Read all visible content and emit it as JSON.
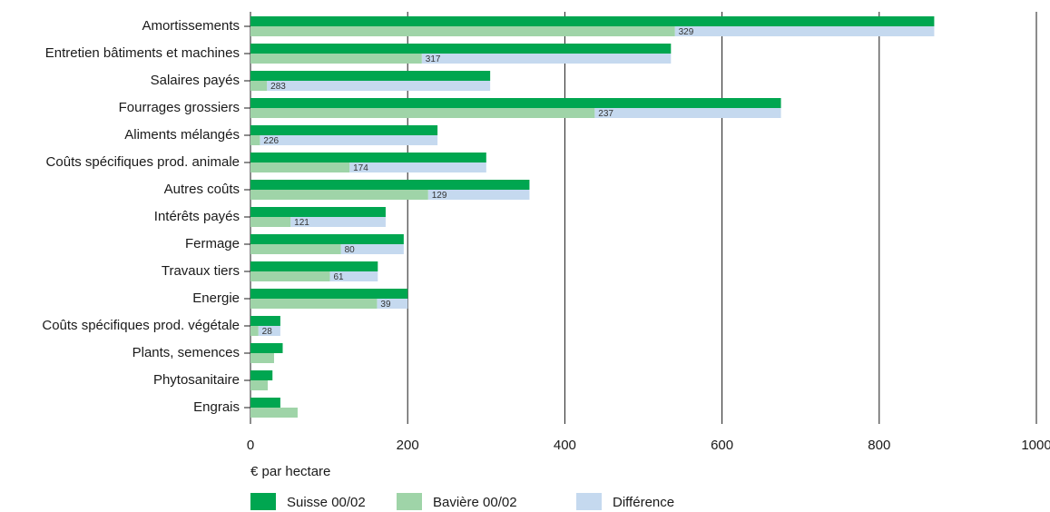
{
  "chart_data": {
    "type": "bar",
    "orientation": "horizontal",
    "categories": [
      "Amortissements",
      "Entretien bâtiments et machines",
      "Salaires payés",
      "Fourrages grossiers",
      "Aliments mélangés",
      "Coûts spécifiques prod. animale",
      "Autres coûts",
      "Intérêts payés",
      "Fermage",
      "Travaux tiers",
      "Energie",
      "Coûts spécifiques prod. végétale",
      "Plants, semences",
      "Phytosanitaire",
      "Engrais"
    ],
    "series": [
      {
        "name": "Suisse 00/02",
        "values": [
          870,
          535,
          305,
          675,
          238,
          300,
          355,
          172,
          195,
          162,
          200,
          38,
          41,
          28,
          38
        ]
      },
      {
        "name": "Bavière 00/02",
        "values": [
          540,
          218,
          21,
          438,
          12,
          126,
          226,
          51,
          115,
          101,
          161,
          10,
          30,
          22,
          60
        ]
      },
      {
        "name": "Différence",
        "values": [
          870,
          535,
          305,
          675,
          238,
          300,
          355,
          172,
          195,
          162,
          200,
          38,
          null,
          null,
          null
        ]
      }
    ],
    "difference_labels": [
      "329",
      "317",
      "283",
      "237",
      "226",
      "174",
      "129",
      "121",
      "80",
      "61",
      "39",
      "28",
      "",
      "",
      ""
    ],
    "xlabel": "€ par hectare",
    "ylabel": "",
    "xlim": [
      0,
      1000
    ],
    "xticks": [
      "0",
      "200",
      "400",
      "600",
      "800",
      "1000"
    ],
    "grid": "vertical",
    "legend_position": "bottom",
    "colors": {
      "Suisse 00/02": "#00a650",
      "Bavière 00/02": "#9fd4a8",
      "Différence": "#c5d9ef",
      "grid": "#1a1a1a"
    }
  }
}
